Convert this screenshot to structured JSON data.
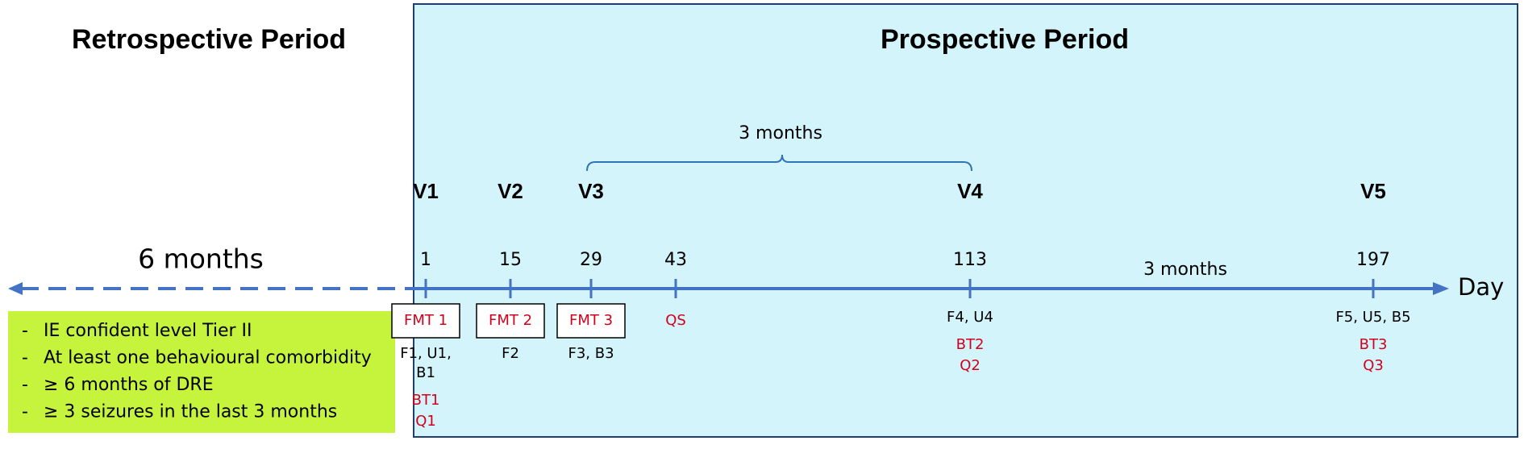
{
  "retrospective": {
    "title": "Retrospective Period",
    "duration": "6 months",
    "criteria": [
      "IE confident level Tier II",
      "At least one behavioural comorbidity",
      "≥ 6 months of DRE",
      "≥ 3 seizures in the last 3 months"
    ]
  },
  "prospective": {
    "title": "Prospective Period"
  },
  "axis_label": "Day",
  "spans": [
    {
      "label": "3 months"
    },
    {
      "label": "3 months"
    }
  ],
  "timepoints": [
    {
      "visit": "V1",
      "day": "1",
      "intervention": "FMT 1",
      "assessments": [
        "F1, U1,",
        "B1"
      ],
      "questionnaires": [
        "BT1",
        "Q1"
      ]
    },
    {
      "visit": "V2",
      "day": "15",
      "intervention": "FMT 2",
      "assessments": [
        "F2"
      ]
    },
    {
      "visit": "V3",
      "day": "29",
      "intervention": "FMT 3",
      "assessments": [
        "F3, B3"
      ]
    },
    {
      "day": "43",
      "questionnaires": [
        "QS"
      ]
    },
    {
      "visit": "V4",
      "day": "113",
      "assessments": [
        "F4, U4"
      ],
      "questionnaires": [
        "BT2",
        "Q2"
      ]
    },
    {
      "visit": "V5",
      "day": "197",
      "assessments": [
        "F5, U5, B5"
      ],
      "questionnaires": [
        "BT3",
        "Q3"
      ]
    }
  ]
}
